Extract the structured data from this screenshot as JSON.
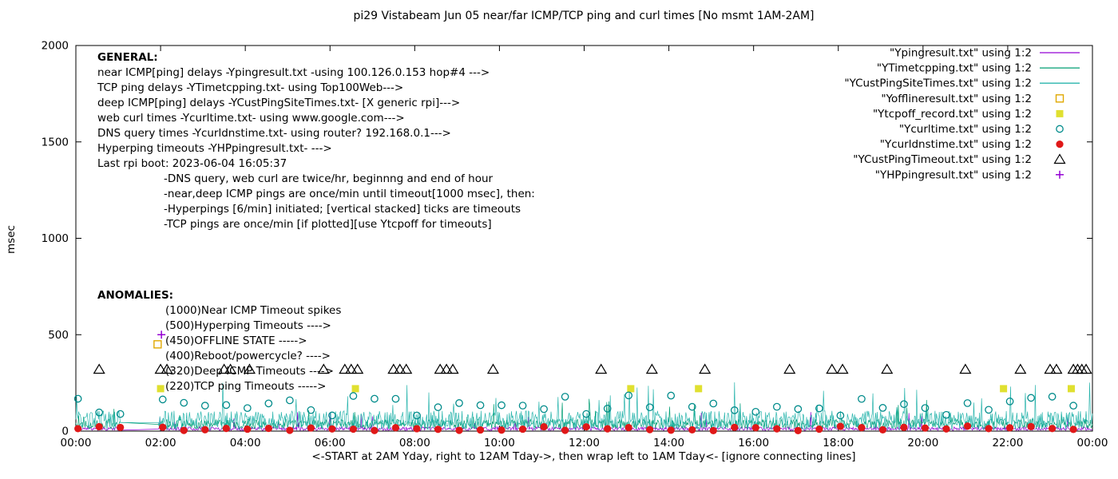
{
  "chart_data": {
    "type": "line",
    "title": "pi29 Vistabeam Jun 05  near/far ICMP/TCP ping and curl times [No msmt 1AM-2AM]",
    "xlabel": "<-START at 2AM Yday, right to 12AM Tday->, then wrap left to 1AM Tday<- [ignore connecting lines]",
    "ylabel": "msec",
    "xlim": [
      0,
      24
    ],
    "ylim": [
      0,
      2000
    ],
    "x_tick_hours": [
      0,
      2,
      4,
      6,
      8,
      10,
      12,
      14,
      16,
      18,
      20,
      22,
      24
    ],
    "x_tick_labels": [
      "00:00",
      "02:00",
      "04:00",
      "06:00",
      "08:00",
      "10:00",
      "12:00",
      "14:00",
      "16:00",
      "18:00",
      "20:00",
      "22:00",
      "00:00"
    ],
    "y_ticks": [
      0,
      500,
      1000,
      1500,
      2000
    ],
    "grid": false,
    "legend_position": "top-right",
    "no_measurement_gap_hours": [
      1,
      2
    ],
    "legend": [
      {
        "label": "\"Ypingresult.txt\" using 1:2",
        "sample": "line",
        "color": "#9400d3"
      },
      {
        "label": "\"YTimetcpping.txt\" using 1:2",
        "sample": "line",
        "color": "#009e73"
      },
      {
        "label": "\"YCustPingSiteTimes.txt\" using 1:2",
        "sample": "line",
        "color": "#2ab5ad"
      },
      {
        "label": "\"Yofflineresult.txt\" using 1:2",
        "sample": "square-open",
        "color": "#e0a800"
      },
      {
        "label": "\"Ytcpoff_record.txt\" using 1:2",
        "sample": "square-filled",
        "color": "#e0e030"
      },
      {
        "label": "\"Ycurltime.txt\" using 1:2",
        "sample": "circle-open",
        "color": "#008b8b"
      },
      {
        "label": "\"Ycurldnstime.txt\" using 1:2",
        "sample": "circle-filled",
        "color": "#e01818"
      },
      {
        "label": "\"YCustPingTimeout.txt\" using 1:2",
        "sample": "triangle-open",
        "color": "#000000"
      },
      {
        "label": "\"YHPpingresult.txt\" using 1:2",
        "sample": "plus",
        "color": "#9400d3"
      }
    ],
    "series": [
      {
        "name": "Ypingresult",
        "kind": "noisy-line",
        "color": "#9400d3",
        "seed": 11,
        "points_per_hour": 60,
        "band": [
          3,
          22
        ],
        "spike_chance": 0.012,
        "spike_band": [
          40,
          110
        ]
      },
      {
        "name": "YTimetcpping",
        "kind": "noisy-line",
        "color": "#009e73",
        "seed": 22,
        "points_per_hour": 60,
        "band": [
          12,
          62
        ],
        "spike_chance": 0.02,
        "spike_band": [
          70,
          170
        ]
      },
      {
        "name": "YCustPingSiteTimes",
        "kind": "noisy-line",
        "color": "#2ab5ad",
        "seed": 33,
        "points_per_hour": 60,
        "band": [
          6,
          105
        ],
        "spike_chance": 0.022,
        "spike_band": [
          120,
          255
        ]
      },
      {
        "name": "Yofflineresult",
        "kind": "markers",
        "marker": "square-open",
        "color": "#e0a800",
        "points": []
      },
      {
        "name": "Ytcpoff_record",
        "kind": "markers",
        "marker": "square-filled",
        "color": "#e0e030",
        "points": [
          [
            6.6,
            220
          ],
          [
            13.1,
            220
          ],
          [
            14.7,
            220
          ],
          [
            21.9,
            220
          ],
          [
            23.5,
            220
          ]
        ]
      },
      {
        "name": "Ycurltime",
        "kind": "interval-markers",
        "marker": "circle-open",
        "color": "#008b8b",
        "seed": 44,
        "interval_hours": 0.5,
        "value_band": [
          80,
          185
        ]
      },
      {
        "name": "Ycurldnstime",
        "kind": "interval-markers",
        "marker": "circle-filled",
        "color": "#e01818",
        "seed": 55,
        "interval_hours": 0.5,
        "value_band": [
          2,
          26
        ]
      },
      {
        "name": "YCustPingTimeout",
        "kind": "markers",
        "marker": "triangle-open",
        "color": "#000000",
        "value": 320,
        "times": [
          0.55,
          2.0,
          2.15,
          3.5,
          3.65,
          4.1,
          5.85,
          6.35,
          6.5,
          6.65,
          7.5,
          7.65,
          7.8,
          8.6,
          8.75,
          8.9,
          9.85,
          12.4,
          13.6,
          14.85,
          16.85,
          17.85,
          18.1,
          19.15,
          21.0,
          22.3,
          23.0,
          23.15,
          23.55,
          23.65,
          23.75,
          23.85
        ]
      },
      {
        "name": "YHPpingresult",
        "kind": "markers",
        "marker": "plus",
        "color": "#9400d3",
        "points": []
      }
    ],
    "annotations": {
      "general_heading": "GENERAL:",
      "general_lines": [
        "near ICMP[ping] delays -Ypingresult.txt -using 100.126.0.153 hop#4 --->",
        "TCP ping delays -YTimetcpping.txt- using Top100Web--->",
        "deep ICMP[ping] delays -YCustPingSiteTimes.txt- [X generic rpi]--->",
        "web curl times -Ycurltime.txt- using www.google.com--->",
        "DNS query times -Ycurldnstime.txt- using router? 192.168.0.1--->",
        "Hyperping timeouts -YHPpingresult.txt- --->",
        "Last rpi boot: 2023-06-04 16:05:37"
      ],
      "notes": [
        "-DNS query, web curl are twice/hr, beginnng and end of hour",
        "-near,deep ICMP pings are once/min until timeout[1000 msec], then:",
        "-Hyperpings [6/min] initiated; [vertical stacked] ticks are timeouts",
        "-TCP pings are once/min [if plotted][use Ytcpoff for timeouts]"
      ],
      "anomalies_heading": "ANOMALIES:",
      "anomaly_lines": [
        "(1000)Near ICMP Timeout spikes",
        "(500)Hyperping Timeouts ---->",
        "(450)OFFLINE STATE ----->",
        "(400)Reboot/powercycle? ---->",
        "(320)Deep ICMP Timeouts ---->",
        "(220)TCP ping Timeouts ----->"
      ],
      "example_markers": [
        {
          "marker": "plus",
          "color": "#9400d3",
          "x": 2.02,
          "y": 500
        },
        {
          "marker": "square-open",
          "color": "#e0a800",
          "x": 1.93,
          "y": 450
        },
        {
          "marker": "square-filled",
          "color": "#e0e030",
          "x": 2.0,
          "y": 220
        }
      ]
    }
  }
}
